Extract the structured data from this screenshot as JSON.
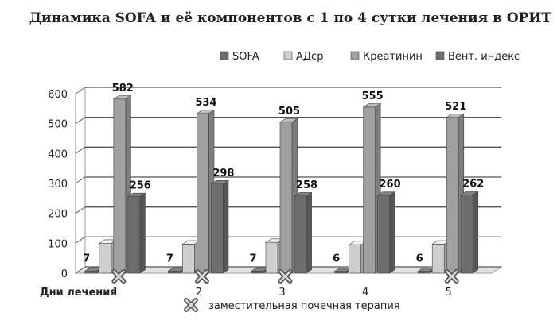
{
  "chart_data": {
    "type": "bar",
    "title": "Динамика SOFA и её компонентов с 1 по 4 сутки лечения в ОРИТ",
    "xlabel": "Дни лечения",
    "ylabel": "",
    "categories": [
      "1",
      "2",
      "3",
      "4",
      "5"
    ],
    "ylim": [
      0,
      600
    ],
    "yticks": [
      0,
      100,
      200,
      300,
      400,
      500,
      600
    ],
    "grid": true,
    "legend_position": "top-right",
    "series": [
      {
        "name": "SOFA",
        "color": "#6d6d6d",
        "values": [
          7,
          7,
          7,
          6,
          6
        ],
        "labels": [
          "7",
          "7",
          "7",
          "6",
          "6"
        ]
      },
      {
        "name": "АДср",
        "color": "#cfcfcf",
        "values": [
          100,
          97,
          103,
          95,
          97
        ]
      },
      {
        "name": "Креатинин",
        "color": "#a0a0a0",
        "values": [
          582,
          534,
          505,
          555,
          521
        ],
        "labels": [
          "582",
          "534",
          "505",
          "555",
          "521"
        ]
      },
      {
        "name": "Вент. индекс",
        "color": "#6e6e6e",
        "values": [
          256,
          298,
          258,
          260,
          262
        ],
        "labels": [
          "256",
          "298",
          "258",
          "260",
          "262"
        ]
      }
    ],
    "markers": {
      "legend_label": "заместительная почечная терапия",
      "icon": "x-mark-icon",
      "categories": [
        "1",
        "2",
        "3",
        "5"
      ]
    }
  }
}
